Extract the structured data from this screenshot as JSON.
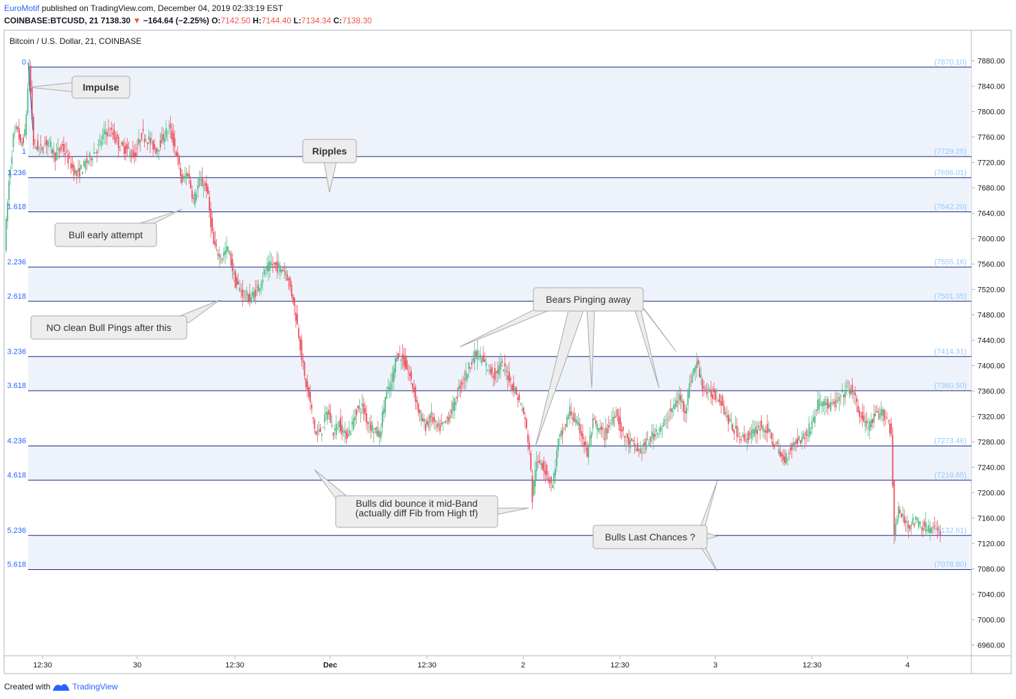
{
  "header": {
    "author": "EuroMotif",
    "published_text": "published on TradingView.com, December 04, 2019 02:33:19 EST",
    "symbol": "COINBASE:BTCUSD, 21",
    "last_price": "7138.30",
    "change": "−164.64 (−2.25%)",
    "open_label": "O:",
    "open": "7142.50",
    "high_label": "H:",
    "high": "7144.40",
    "low_label": "L:",
    "low": "7134.34",
    "close_label": "C:",
    "close": "7138.30"
  },
  "footer": {
    "created_with": "Created with",
    "brand": "TradingView"
  },
  "chart_data": {
    "type": "candlestick",
    "title": "Bitcoin / U.S. Dollar, 21, COINBASE",
    "ylim": [
      6945,
      7895
    ],
    "y_ticks": [
      "7880.00",
      "7840.00",
      "7800.00",
      "7760.00",
      "7720.00",
      "7680.00",
      "7640.00",
      "7600.00",
      "7560.00",
      "7520.00",
      "7480.00",
      "7440.00",
      "7400.00",
      "7360.00",
      "7320.00",
      "7280.00",
      "7240.00",
      "7200.00",
      "7160.00",
      "7120.00",
      "7080.00",
      "7040.00",
      "7000.00",
      "6960.00"
    ],
    "x_ticks": [
      {
        "label": "12:30",
        "bold": false
      },
      {
        "label": "30",
        "bold": false
      },
      {
        "label": "12:30",
        "bold": false
      },
      {
        "label": "Dec",
        "bold": true
      },
      {
        "label": "12:30",
        "bold": false
      },
      {
        "label": "2",
        "bold": false
      },
      {
        "label": "12:30",
        "bold": false
      },
      {
        "label": "3",
        "bold": false
      },
      {
        "label": "12:30",
        "bold": false
      },
      {
        "label": "4",
        "bold": false
      }
    ],
    "grid": false,
    "colors": {
      "up": "#53b987",
      "down": "#eb4d5c",
      "fib_line": "#1a237e",
      "fib_band": "#eef3fb",
      "fib_label": "#2962ff",
      "price_label": "#90caf9"
    },
    "fib_levels": [
      {
        "ratio": "0",
        "price": 7870.1,
        "price_label": "(7870.10)"
      },
      {
        "ratio": "1",
        "price": 7729.25,
        "price_label": "(7729.25)"
      },
      {
        "ratio": "1.236",
        "price": 7696.01,
        "price_label": "(7696.01)"
      },
      {
        "ratio": "1.618",
        "price": 7642.2,
        "price_label": "(7642.20)"
      },
      {
        "ratio": "2.236",
        "price": 7555.16,
        "price_label": "(7555.16)"
      },
      {
        "ratio": "2.618",
        "price": 7501.35,
        "price_label": "(7501.35)"
      },
      {
        "ratio": "3.236",
        "price": 7414.31,
        "price_label": "(7414.31)"
      },
      {
        "ratio": "3.618",
        "price": 7360.5,
        "price_label": "(7360.50)"
      },
      {
        "ratio": "4.236",
        "price": 7273.46,
        "price_label": "(7273.46)"
      },
      {
        "ratio": "4.618",
        "price": 7219.65,
        "price_label": "(7219.65)"
      },
      {
        "ratio": "5.236",
        "price": 7132.61,
        "price_label": "(7132.61)"
      },
      {
        "ratio": "5.618",
        "price": 7078.8,
        "price_label": "(7078.80)"
      }
    ],
    "price_path": [
      [
        0,
        7590
      ],
      [
        3,
        7690
      ],
      [
        6,
        7760
      ],
      [
        9,
        7775
      ],
      [
        11,
        7745
      ],
      [
        14,
        7765
      ],
      [
        17,
        7870
      ],
      [
        20,
        7750
      ],
      [
        25,
        7740
      ],
      [
        30,
        7755
      ],
      [
        35,
        7730
      ],
      [
        40,
        7745
      ],
      [
        45,
        7720
      ],
      [
        50,
        7700
      ],
      [
        55,
        7715
      ],
      [
        60,
        7730
      ],
      [
        65,
        7745
      ],
      [
        70,
        7770
      ],
      [
        75,
        7765
      ],
      [
        80,
        7745
      ],
      [
        85,
        7740
      ],
      [
        90,
        7730
      ],
      [
        95,
        7765
      ],
      [
        100,
        7755
      ],
      [
        105,
        7740
      ],
      [
        110,
        7760
      ],
      [
        114,
        7775
      ],
      [
        118,
        7745
      ],
      [
        123,
        7690
      ],
      [
        127,
        7705
      ],
      [
        131,
        7660
      ],
      [
        135,
        7690
      ],
      [
        140,
        7680
      ],
      [
        145,
        7590
      ],
      [
        150,
        7570
      ],
      [
        155,
        7585
      ],
      [
        160,
        7530
      ],
      [
        165,
        7515
      ],
      [
        170,
        7505
      ],
      [
        175,
        7520
      ],
      [
        180,
        7545
      ],
      [
        185,
        7560
      ],
      [
        190,
        7555
      ],
      [
        195,
        7550
      ],
      [
        200,
        7505
      ],
      [
        204,
        7450
      ],
      [
        208,
        7380
      ],
      [
        212,
        7340
      ],
      [
        216,
        7290
      ],
      [
        220,
        7300
      ],
      [
        224,
        7330
      ],
      [
        228,
        7295
      ],
      [
        232,
        7310
      ],
      [
        236,
        7290
      ],
      [
        240,
        7300
      ],
      [
        244,
        7330
      ],
      [
        248,
        7335
      ],
      [
        252,
        7310
      ],
      [
        256,
        7300
      ],
      [
        260,
        7290
      ],
      [
        264,
        7350
      ],
      [
        268,
        7370
      ],
      [
        272,
        7420
      ],
      [
        276,
        7410
      ],
      [
        280,
        7390
      ],
      [
        284,
        7360
      ],
      [
        288,
        7320
      ],
      [
        292,
        7305
      ],
      [
        296,
        7320
      ],
      [
        300,
        7300
      ],
      [
        304,
        7305
      ],
      [
        308,
        7320
      ],
      [
        312,
        7340
      ],
      [
        316,
        7370
      ],
      [
        320,
        7385
      ],
      [
        324,
        7410
      ],
      [
        328,
        7420
      ],
      [
        332,
        7405
      ],
      [
        336,
        7395
      ],
      [
        340,
        7385
      ],
      [
        344,
        7400
      ],
      [
        348,
        7390
      ],
      [
        352,
        7370
      ],
      [
        356,
        7350
      ],
      [
        360,
        7325
      ],
      [
        364,
        7270
      ],
      [
        366,
        7190
      ],
      [
        368,
        7240
      ],
      [
        372,
        7250
      ],
      [
        376,
        7230
      ],
      [
        380,
        7210
      ],
      [
        384,
        7280
      ],
      [
        388,
        7300
      ],
      [
        392,
        7330
      ],
      [
        396,
        7310
      ],
      [
        400,
        7295
      ],
      [
        404,
        7260
      ],
      [
        408,
        7310
      ],
      [
        412,
        7300
      ],
      [
        416,
        7290
      ],
      [
        420,
        7310
      ],
      [
        424,
        7330
      ],
      [
        428,
        7295
      ],
      [
        432,
        7280
      ],
      [
        436,
        7275
      ],
      [
        440,
        7265
      ],
      [
        444,
        7275
      ],
      [
        448,
        7285
      ],
      [
        452,
        7300
      ],
      [
        456,
        7300
      ],
      [
        460,
        7320
      ],
      [
        464,
        7335
      ],
      [
        468,
        7350
      ],
      [
        472,
        7330
      ],
      [
        476,
        7380
      ],
      [
        480,
        7405
      ],
      [
        484,
        7370
      ],
      [
        488,
        7355
      ],
      [
        492,
        7355
      ],
      [
        496,
        7350
      ],
      [
        500,
        7325
      ],
      [
        504,
        7305
      ],
      [
        508,
        7295
      ],
      [
        512,
        7285
      ],
      [
        516,
        7290
      ],
      [
        520,
        7295
      ],
      [
        524,
        7305
      ],
      [
        528,
        7300
      ],
      [
        532,
        7285
      ],
      [
        536,
        7270
      ],
      [
        540,
        7250
      ],
      [
        544,
        7265
      ],
      [
        548,
        7280
      ],
      [
        552,
        7285
      ],
      [
        556,
        7290
      ],
      [
        560,
        7310
      ],
      [
        564,
        7340
      ],
      [
        568,
        7345
      ],
      [
        572,
        7335
      ],
      [
        576,
        7340
      ],
      [
        580,
        7350
      ],
      [
        584,
        7365
      ],
      [
        588,
        7360
      ],
      [
        592,
        7330
      ],
      [
        596,
        7310
      ],
      [
        600,
        7305
      ],
      [
        604,
        7320
      ],
      [
        608,
        7325
      ],
      [
        612,
        7320
      ],
      [
        615,
        7290
      ],
      [
        617,
        7140
      ],
      [
        620,
        7170
      ],
      [
        624,
        7155
      ],
      [
        628,
        7150
      ],
      [
        632,
        7155
      ],
      [
        636,
        7148
      ],
      [
        640,
        7145
      ],
      [
        644,
        7142
      ],
      [
        648,
        7138
      ]
    ],
    "n_slots": 650
  },
  "annotations": [
    {
      "id": "impulse",
      "text": "Impulse",
      "bold": true
    },
    {
      "id": "ripples",
      "text": "Ripples",
      "bold": true
    },
    {
      "id": "bull-early",
      "text": "Bull early attempt",
      "bold": false
    },
    {
      "id": "no-clean",
      "text": "NO clean Bull Pings after this",
      "bold": false
    },
    {
      "id": "bears",
      "text": "Bears Pinging away",
      "bold": false
    },
    {
      "id": "bulls-bounce-1",
      "text": "Bulls did bounce it mid-Band",
      "bold": false
    },
    {
      "id": "bulls-bounce-2",
      "text": "(actually diff Fib from High tf)",
      "bold": false
    },
    {
      "id": "last-chances",
      "text": "Bulls Last Chances ?",
      "bold": false
    }
  ]
}
